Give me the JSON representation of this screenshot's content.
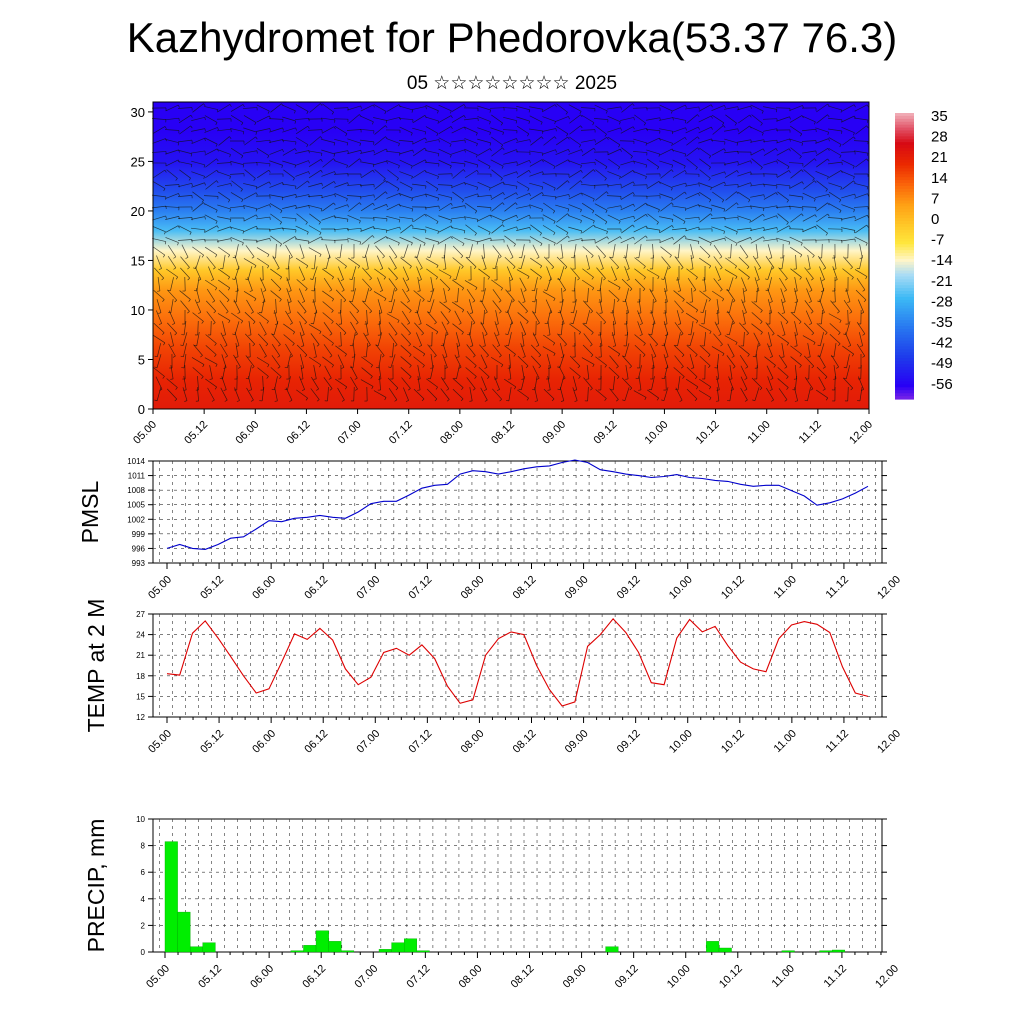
{
  "title": "Kazhydromet for Phedorovka(53.37 76.3)",
  "subtitle": "05 ☆☆☆☆☆☆☆☆ 2025",
  "chart_data": [
    {
      "type": "heatmap",
      "description_axis": "height",
      "y_ticks": [
        "0",
        "5",
        "10",
        "15",
        "20",
        "25",
        "30"
      ],
      "ylim": [
        0,
        31
      ],
      "x_ticks": [
        "05.00",
        "05.12",
        "06.00",
        "06.12",
        "07.00",
        "07.12",
        "08.00",
        "08.12",
        "09.00",
        "09.12",
        "10.00",
        "10.12",
        "11.00",
        "11.12",
        "12.00"
      ],
      "colorbar_labels": [
        "35",
        "28",
        "21",
        "14",
        "7",
        "0",
        "-7",
        "-14",
        "-21",
        "-28",
        "-35",
        "-42",
        "-49",
        "-56"
      ],
      "colorbar_range": [
        -60,
        38
      ],
      "level_temps": [
        {
          "level": 0,
          "temp": 24
        },
        {
          "level": 3,
          "temp": 22
        },
        {
          "level": 6,
          "temp": 18
        },
        {
          "level": 9,
          "temp": 13
        },
        {
          "level": 12,
          "temp": 8
        },
        {
          "level": 14,
          "temp": 0
        },
        {
          "level": 16,
          "temp": -12
        },
        {
          "level": 18,
          "temp": -24
        },
        {
          "level": 20,
          "temp": -34
        },
        {
          "level": 22,
          "temp": -42
        },
        {
          "level": 25,
          "temp": -52
        },
        {
          "level": 28,
          "temp": -55
        },
        {
          "level": 31,
          "temp": -55
        }
      ]
    },
    {
      "type": "line",
      "ylabel": "PMSL",
      "y_ticks": [
        "993",
        "996",
        "999",
        "1002",
        "1005",
        "1008",
        "1011",
        "1014"
      ],
      "ylim": [
        993,
        1014
      ],
      "color": "#0000cc",
      "x_ticks": [
        "05.00",
        "05.12",
        "06.00",
        "06.12",
        "07.00",
        "07.12",
        "08.00",
        "08.12",
        "09.00",
        "09.12",
        "10.00",
        "10.12",
        "11.00",
        "11.12",
        "12.00"
      ],
      "x_step_hours": 3,
      "values": [
        996.0,
        996.8,
        996.0,
        995.8,
        996.8,
        998.1,
        998.4,
        1000.0,
        1001.7,
        1001.5,
        1002.2,
        1002.4,
        1002.8,
        1002.4,
        1002.2,
        1003.5,
        1005.2,
        1005.7,
        1005.7,
        1007.0,
        1008.4,
        1009.0,
        1009.2,
        1011.3,
        1012.0,
        1011.8,
        1011.3,
        1011.8,
        1012.4,
        1012.8,
        1013.0,
        1013.7,
        1014.2,
        1013.7,
        1012.2,
        1011.8,
        1011.3,
        1011.0,
        1010.6,
        1010.8,
        1011.2,
        1010.6,
        1010.4,
        1010.0,
        1009.8,
        1009.2,
        1008.8,
        1009.0,
        1009.0,
        1007.9,
        1006.8,
        1004.9,
        1005.4,
        1006.2,
        1007.4,
        1008.8
      ]
    },
    {
      "type": "line",
      "ylabel": "TEMP at 2 M",
      "y_ticks": [
        "12",
        "15",
        "18",
        "21",
        "24",
        "27"
      ],
      "ylim": [
        12,
        27
      ],
      "color": "#dd0000",
      "x_ticks": [
        "05.00",
        "05.12",
        "06.00",
        "06.12",
        "07.00",
        "07.12",
        "08.00",
        "08.12",
        "09.00",
        "09.12",
        "10.00",
        "10.12",
        "11.00",
        "11.12",
        "12.00"
      ],
      "x_step_hours": 3,
      "values": [
        18.3,
        18.1,
        24.2,
        26.0,
        23.5,
        20.8,
        18.0,
        15.5,
        16.1,
        20.0,
        24.1,
        23.3,
        24.9,
        23.2,
        19.0,
        16.7,
        17.8,
        21.4,
        22.0,
        21.0,
        22.5,
        20.5,
        16.5,
        14.0,
        14.5,
        21.0,
        23.4,
        24.4,
        24.0,
        19.5,
        16.0,
        13.6,
        14.2,
        22.3,
        24.0,
        26.3,
        24.3,
        21.4,
        17.0,
        16.7,
        23.5,
        26.2,
        24.4,
        25.2,
        22.4,
        20.0,
        19.0,
        18.6,
        23.4,
        25.4,
        25.9,
        25.5,
        24.3,
        19.3,
        15.5,
        15.0
      ]
    },
    {
      "type": "bar",
      "ylabel": "PRECIP, mm",
      "y_ticks": [
        "0",
        "2",
        "4",
        "6",
        "8",
        "10"
      ],
      "ylim": [
        0,
        10
      ],
      "color": "#00ee00",
      "x_ticks": [
        "05.00",
        "05.12",
        "06.00",
        "06.12",
        "07.00",
        "07.12",
        "08.00",
        "08.12",
        "09.00",
        "09.12",
        "10.00",
        "10.12",
        "11.00",
        "11.12",
        "12.00"
      ],
      "x_step_hours": 3,
      "values": [
        8.3,
        3.0,
        0.4,
        0.7,
        0,
        0,
        0,
        0,
        0,
        0,
        0.1,
        0.5,
        1.6,
        0.8,
        0.1,
        0,
        0,
        0.2,
        0.7,
        1.0,
        0.1,
        0,
        0,
        0,
        0,
        0,
        0,
        0,
        0,
        0,
        0,
        0,
        0,
        0,
        0,
        0.4,
        0,
        0,
        0,
        0,
        0,
        0,
        0,
        0.8,
        0.3,
        0,
        0,
        0,
        0,
        0.1,
        0,
        0,
        0.1,
        0.15,
        0,
        0
      ]
    }
  ]
}
